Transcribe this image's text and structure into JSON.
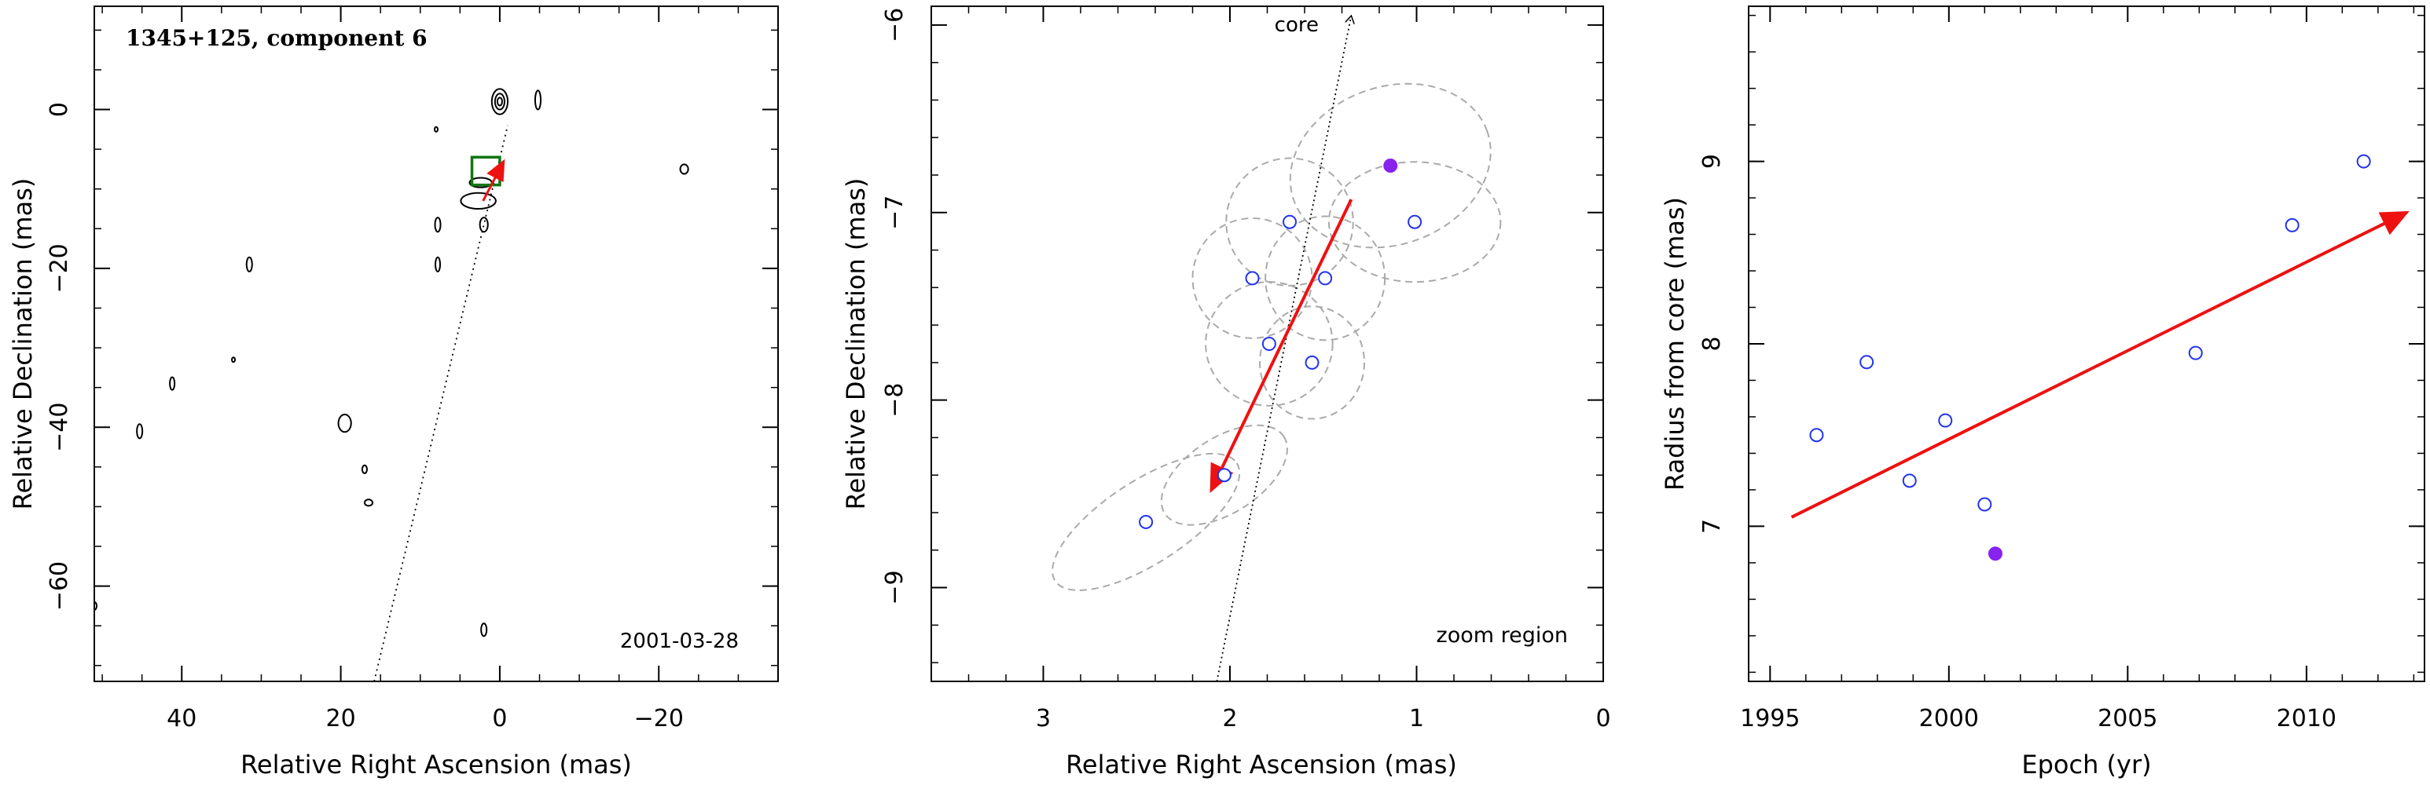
{
  "chart_data": [
    {
      "type": "contour",
      "title": "1345+125, component 6",
      "date_label": "2001-03-28",
      "xlabel": "Relative Right Ascension (mas)",
      "ylabel": "Relative Declination (mas)",
      "xlim": [
        51,
        -35
      ],
      "ylim": [
        -72,
        13
      ],
      "xticks": [
        40,
        20,
        0,
        -20
      ],
      "yticks": [
        0,
        -20,
        -40,
        -60
      ],
      "trajectory_line": {
        "x": [
          15.8,
          -1.0
        ],
        "y": [
          -72,
          -2
        ]
      },
      "zoom_box": {
        "x": [
          3.5,
          0
        ],
        "y": [
          -6,
          -9.5
        ]
      },
      "motion_arrow": {
        "x": [
          2.1,
          -0.5
        ],
        "y": [
          -11.5,
          -6.5
        ]
      },
      "contours": [
        {
          "x": 0,
          "y": 1,
          "rx": 1.0,
          "ry": 1.6
        },
        {
          "x": 0,
          "y": 1,
          "rx": 0.6,
          "ry": 1.0
        },
        {
          "x": 0,
          "y": 1,
          "rx": 0.3,
          "ry": 0.5
        },
        {
          "x": -4.8,
          "y": 1.2,
          "rx": 0.35,
          "ry": 1.2
        },
        {
          "x": 2.7,
          "y": -11.5,
          "rx": 2.2,
          "ry": 1.0
        },
        {
          "x": 2.4,
          "y": -9.2,
          "rx": 1.4,
          "ry": 0.6
        },
        {
          "x": 2.0,
          "y": -14.5,
          "rx": 0.5,
          "ry": 0.9
        },
        {
          "x": 7.8,
          "y": -14.5,
          "rx": 0.35,
          "ry": 0.9
        },
        {
          "x": 7.8,
          "y": -19.5,
          "rx": 0.3,
          "ry": 0.9
        },
        {
          "x": 31.5,
          "y": -19.5,
          "rx": 0.35,
          "ry": 0.9
        },
        {
          "x": 41.2,
          "y": -34.5,
          "rx": 0.3,
          "ry": 0.8
        },
        {
          "x": 45.3,
          "y": -40.5,
          "rx": 0.35,
          "ry": 0.9
        },
        {
          "x": 19.5,
          "y": -39.5,
          "rx": 0.8,
          "ry": 1.1
        },
        {
          "x": 17.0,
          "y": -45.3,
          "rx": 0.3,
          "ry": 0.5
        },
        {
          "x": 16.5,
          "y": -49.5,
          "rx": 0.5,
          "ry": 0.4
        },
        {
          "x": 2.0,
          "y": -65.5,
          "rx": 0.35,
          "ry": 0.8
        },
        {
          "x": -23.2,
          "y": -7.5,
          "rx": 0.5,
          "ry": 0.6
        },
        {
          "x": 8.0,
          "y": -2.5,
          "rx": 0.1,
          "ry": 0.3
        },
        {
          "x": 33.5,
          "y": -31.5,
          "rx": 0.1,
          "ry": 0.3
        },
        {
          "x": 51,
          "y": -62.5,
          "rx": 0.3,
          "ry": 0.5
        }
      ]
    },
    {
      "type": "scatter",
      "xlabel": "Relative Right Ascension (mas)",
      "ylabel": "Relative Declination (mas)",
      "xlim": [
        3.6,
        0
      ],
      "ylim": [
        -9.5,
        -5.9
      ],
      "xticks": [
        3,
        2,
        1,
        0
      ],
      "yticks": [
        -6,
        -7,
        -8,
        -9
      ],
      "annotations": {
        "core": "core",
        "zoom": "zoom region"
      },
      "core_line": {
        "x": [
          2.07,
          1.35
        ],
        "y": [
          -9.5,
          -5.95
        ]
      },
      "motion_arrow": {
        "x": [
          1.35,
          2.1
        ],
        "y": [
          -6.93,
          -8.48
        ]
      },
      "points_open": [
        {
          "x": 2.45,
          "y": -8.65
        },
        {
          "x": 2.03,
          "y": -8.4
        },
        {
          "x": 1.88,
          "y": -7.35
        },
        {
          "x": 1.79,
          "y": -7.7
        },
        {
          "x": 1.68,
          "y": -7.05
        },
        {
          "x": 1.56,
          "y": -7.8
        },
        {
          "x": 1.49,
          "y": -7.35
        },
        {
          "x": 1.01,
          "y": -7.05
        }
      ],
      "points_filled": [
        {
          "x": 1.14,
          "y": -6.75
        }
      ],
      "ellipses": [
        {
          "x": 2.45,
          "y": -8.65,
          "rx": 0.58,
          "ry": 0.22,
          "angle": -33
        },
        {
          "x": 2.03,
          "y": -8.4,
          "rx": 0.38,
          "ry": 0.2,
          "angle": -33
        },
        {
          "x": 1.88,
          "y": -7.35,
          "rx": 0.32,
          "ry": 0.32,
          "angle": 0
        },
        {
          "x": 1.79,
          "y": -7.7,
          "rx": 0.34,
          "ry": 0.33,
          "angle": 0
        },
        {
          "x": 1.68,
          "y": -7.05,
          "rx": 0.34,
          "ry": 0.34,
          "angle": 0
        },
        {
          "x": 1.56,
          "y": -7.8,
          "rx": 0.28,
          "ry": 0.3,
          "angle": 0
        },
        {
          "x": 1.49,
          "y": -7.35,
          "rx": 0.32,
          "ry": 0.33,
          "angle": 0
        },
        {
          "x": 1.01,
          "y": -7.05,
          "rx": 0.46,
          "ry": 0.32,
          "angle": 0
        },
        {
          "x": 1.14,
          "y": -6.75,
          "rx": 0.55,
          "ry": 0.42,
          "angle": -20
        }
      ]
    },
    {
      "type": "scatter",
      "xlabel": "Epoch (yr)",
      "ylabel": "Radius from core (mas)",
      "xlim": [
        1994.4,
        2013.3
      ],
      "ylim": [
        6.15,
        9.85
      ],
      "xticks": [
        1995,
        2000,
        2005,
        2010
      ],
      "yticks": [
        7,
        8,
        9
      ],
      "points_open": [
        {
          "x": 1996.3,
          "y": 7.5
        },
        {
          "x": 1997.7,
          "y": 7.9
        },
        {
          "x": 1998.9,
          "y": 7.25
        },
        {
          "x": 1999.9,
          "y": 7.58
        },
        {
          "x": 2001.0,
          "y": 7.12
        },
        {
          "x": 2006.9,
          "y": 7.95
        },
        {
          "x": 2009.6,
          "y": 8.65
        },
        {
          "x": 2011.6,
          "y": 9.0
        }
      ],
      "points_filled": [
        {
          "x": 2001.3,
          "y": 6.85
        }
      ],
      "trend_arrow": {
        "x": [
          1995.6,
          2012.8
        ],
        "y": [
          7.05,
          8.72
        ]
      }
    }
  ],
  "colors": {
    "arrow": "#ee1111",
    "open_point": "#2233ee",
    "filled_point": "#8822ee",
    "ellipse": "#aaaaaa",
    "zoom_box": "#117711"
  }
}
